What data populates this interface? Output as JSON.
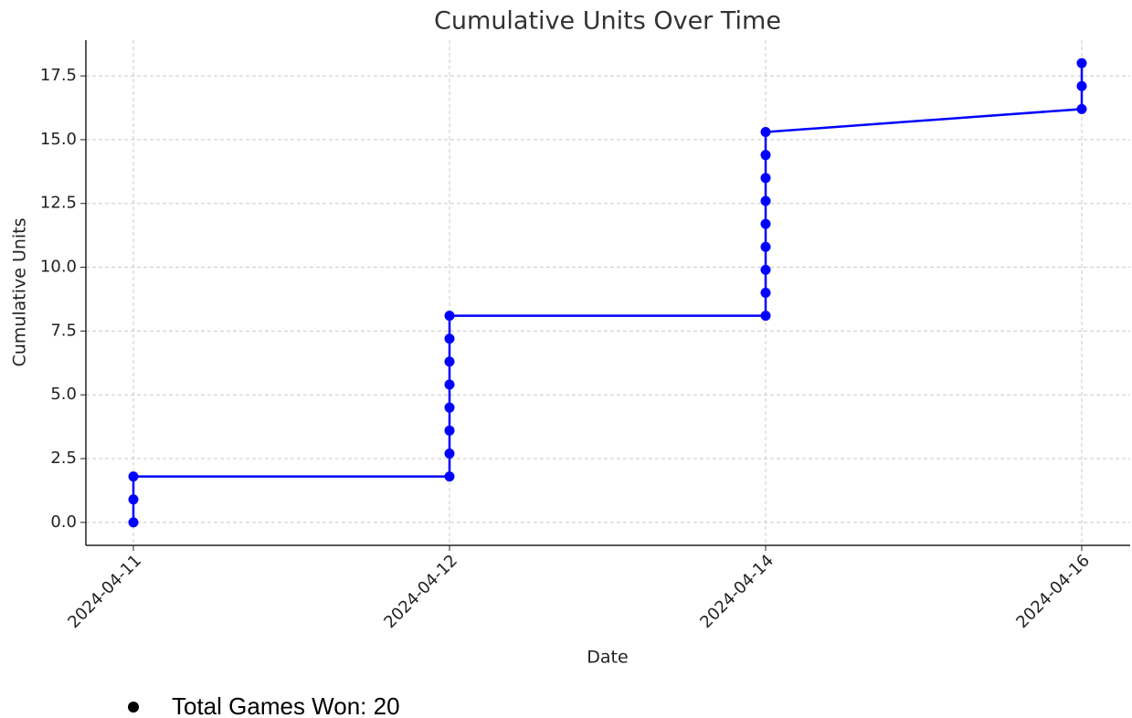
{
  "chart_data": {
    "type": "line",
    "title": "Cumulative Units Over Time",
    "xlabel": "Date",
    "ylabel": "Cumulative Units",
    "categories": [
      "2024-04-11",
      "2024-04-12",
      "2024-04-14",
      "2024-04-16"
    ],
    "x": [
      "2024-04-11",
      "2024-04-11",
      "2024-04-11",
      "2024-04-12",
      "2024-04-12",
      "2024-04-12",
      "2024-04-12",
      "2024-04-12",
      "2024-04-12",
      "2024-04-12",
      "2024-04-12",
      "2024-04-14",
      "2024-04-14",
      "2024-04-14",
      "2024-04-14",
      "2024-04-14",
      "2024-04-14",
      "2024-04-14",
      "2024-04-14",
      "2024-04-14",
      "2024-04-16",
      "2024-04-16",
      "2024-04-16"
    ],
    "values": [
      0,
      0.9,
      1.8,
      1.8,
      2.7,
      3.6,
      4.5,
      5.4,
      6.3,
      7.2,
      8.1,
      8.1,
      9.0,
      9.9,
      10.8,
      11.7,
      12.6,
      13.5,
      14.4,
      15.3,
      16.2,
      17.1,
      18.0
    ],
    "color": "#0000ff",
    "ylim": [
      -0.9,
      18.9
    ],
    "yticks": [
      {
        "value": 0,
        "label": "0.0"
      },
      {
        "value": 2.5,
        "label": "2.5"
      },
      {
        "value": 5,
        "label": "5.0"
      },
      {
        "value": 7.5,
        "label": "7.5"
      },
      {
        "value": 10,
        "label": "10.0"
      },
      {
        "value": 12.5,
        "label": "12.5"
      },
      {
        "value": 15,
        "label": "15.0"
      },
      {
        "value": 17.5,
        "label": "17.5"
      }
    ],
    "grid": true
  },
  "list": [
    "Total Games Won: 20"
  ]
}
